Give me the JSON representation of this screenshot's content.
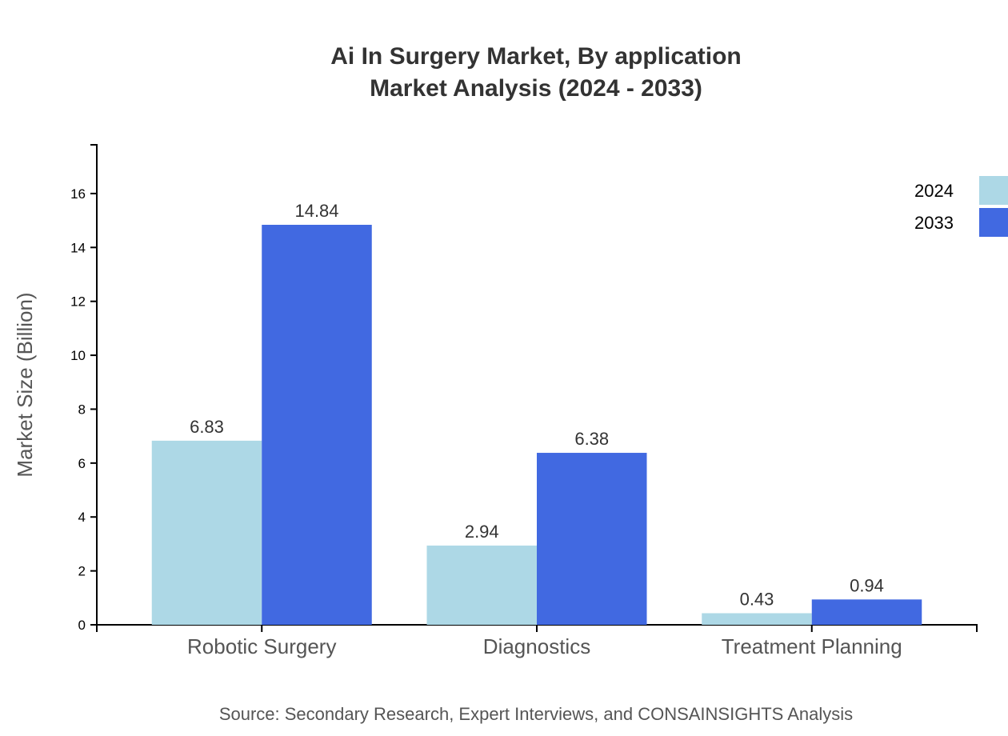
{
  "chart_data": {
    "type": "bar",
    "title": "Ai In Surgery Market, By application",
    "subtitle": "Market Analysis (2024 - 2033)",
    "xlabel": "",
    "ylabel": "Market Size (Billion)",
    "categories": [
      "Robotic Surgery",
      "Diagnostics",
      "Treatment Planning"
    ],
    "series": [
      {
        "name": "2024",
        "values": [
          6.83,
          2.94,
          0.43
        ],
        "color": "#add8e6"
      },
      {
        "name": "2033",
        "values": [
          14.84,
          6.38,
          0.94
        ],
        "color": "#4169e1"
      }
    ],
    "ylim": [
      0,
      17.808
    ],
    "yticks": [
      0,
      2,
      4,
      6,
      8,
      10,
      12,
      14,
      16
    ],
    "grid": false,
    "legend_position": "top-right",
    "source": "Source: Secondary Research, Expert Interviews, and CONSAINSIGHTS Analysis"
  }
}
